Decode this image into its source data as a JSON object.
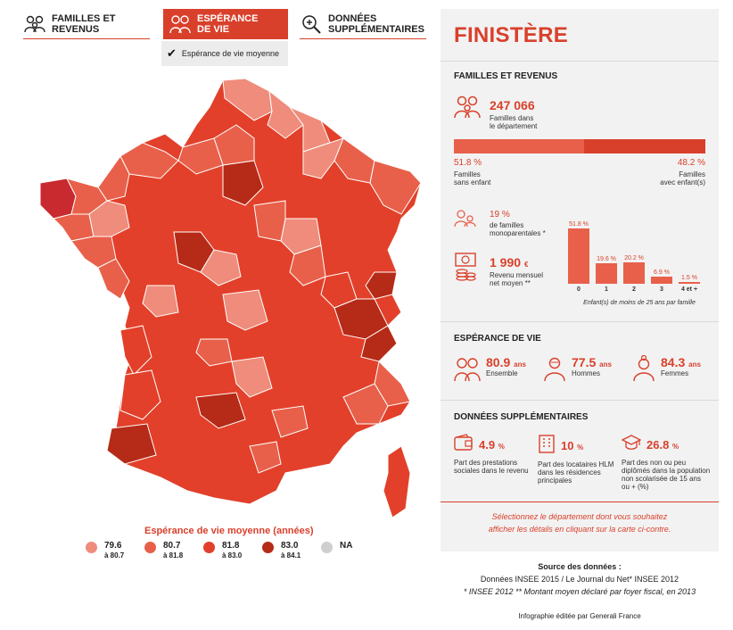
{
  "tabs": [
    {
      "label_line1": "FAMILLES ET",
      "label_line2": "REVENUS",
      "icon": "family-icon"
    },
    {
      "label_line1": "ESPÉRANCE",
      "label_line2": "DE VIE",
      "icon": "elderly-couple-icon"
    },
    {
      "label_line1": "DONNÉES",
      "label_line2": "SUPPLÉMENTAIRES",
      "icon": "magnifier-plus-icon"
    }
  ],
  "dropdown": {
    "selected": "Espérance de vie moyenne"
  },
  "legend": {
    "title": "Espérance de vie moyenne (années)",
    "items": [
      {
        "from": "79.6",
        "to": "à 80.7",
        "color": "#ef8c7b"
      },
      {
        "from": "80.7",
        "to": "à 81.8",
        "color": "#e8604a"
      },
      {
        "from": "81.8",
        "to": "à 83.0",
        "color": "#e2402a"
      },
      {
        "from": "83.0",
        "to": "à 84.1",
        "color": "#b52b17"
      },
      {
        "from": "NA",
        "to": "",
        "color": "#cfcfcf"
      }
    ]
  },
  "panel": {
    "department": "FINISTÈRE",
    "familles": {
      "title": "FAMILLES ET REVENUS",
      "count": "247 066",
      "count_label_1": "Familles dans",
      "count_label_2": "le département",
      "sans_enfant_pct": "51.8 %",
      "sans_enfant_label_1": "Familles",
      "sans_enfant_label_2": "sans enfant",
      "avec_enfant_pct": "48.2 %",
      "avec_enfant_label_1": "Familles",
      "avec_enfant_label_2": "avec enfant(s)",
      "split": [
        51.8,
        48.2
      ],
      "mono_pct": "19 %",
      "mono_label_1": "de familles",
      "mono_label_2": "monoparentales *",
      "revenu": "1 990",
      "revenu_unit": "€",
      "revenu_label_1": "Revenu mensuel",
      "revenu_label_2": "net moyen **",
      "histogram_caption": "Enfant(s) de moins de 25 ans par famille",
      "histogram": [
        {
          "cat": "0",
          "value": 51.8,
          "label": "51.8 %"
        },
        {
          "cat": "1",
          "value": 19.6,
          "label": "19.6 %"
        },
        {
          "cat": "2",
          "value": 20.2,
          "label": "20.2 %"
        },
        {
          "cat": "3",
          "value": 6.9,
          "label": "6.9 %"
        },
        {
          "cat": "4 et +",
          "value": 1.5,
          "label": "1.5 %"
        }
      ]
    },
    "esperance": {
      "title": "ESPÉRANCE DE VIE",
      "items": [
        {
          "value": "80.9",
          "unit": "ans",
          "label": "Ensemble",
          "icon": "elderly-couple-icon"
        },
        {
          "value": "77.5",
          "unit": "ans",
          "label": "Hommes",
          "icon": "elderly-man-icon"
        },
        {
          "value": "84.3",
          "unit": "ans",
          "label": "Femmes",
          "icon": "elderly-woman-icon"
        }
      ]
    },
    "supp": {
      "title": "DONNÉES SUPPLÉMENTAIRES",
      "items": [
        {
          "value": "4.9",
          "unit": "%",
          "label": "Part des prestations sociales dans le revenu",
          "icon": "wallet-icon"
        },
        {
          "value": "10",
          "unit": "%",
          "label": "Part des locataires HLM dans les résidences principales",
          "icon": "building-icon"
        },
        {
          "value": "26.8",
          "unit": "%",
          "label": "Part des non ou peu diplômés dans la population non scolarisée de 15 ans ou + (%)",
          "icon": "graduation-cap-icon"
        }
      ]
    },
    "note_1": "Sélectionnez le département dont vous souhaitez",
    "note_2": "afficher les détails en cliquant sur la carte ci-contre."
  },
  "source": {
    "title": "Source des données :",
    "line1": "Données INSEE 2015 / Le Journal du Net* INSEE 2012",
    "line2": "* INSEE 2012 ** Montant moyen déclaré par foyer fiscal, en 2013",
    "credit": "Infographie éditée par Generali France"
  }
}
